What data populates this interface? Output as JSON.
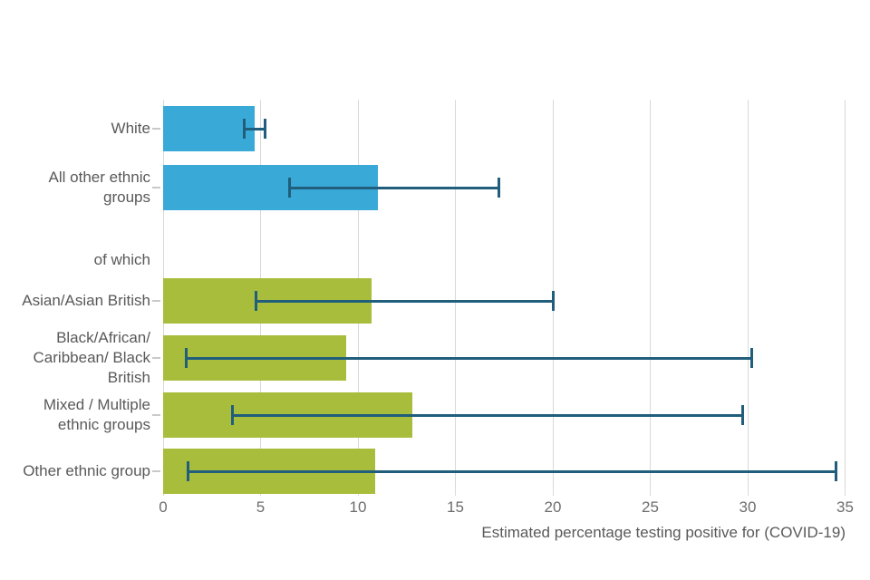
{
  "chart_data": {
    "type": "bar",
    "orientation": "horizontal",
    "title": "",
    "xlabel": "Estimated percentage testing positive for (COVID-19)",
    "ylabel": "",
    "xlim": [
      0,
      35
    ],
    "xticks": [
      0,
      5,
      10,
      15,
      20,
      25,
      30,
      35
    ],
    "grid": true,
    "legend": false,
    "error_bars": true,
    "bars": [
      {
        "label": "White",
        "label_lines": [
          "White"
        ],
        "value": 4.7,
        "ci_low": 4.1,
        "ci_high": 5.3,
        "color_key": "blue"
      },
      {
        "label": "All other ethnic groups",
        "label_lines": [
          "All other ethnic",
          "groups"
        ],
        "value": 11.0,
        "ci_low": 6.4,
        "ci_high": 17.3,
        "color_key": "blue"
      },
      {
        "label": "of which",
        "label_lines": [
          "of which"
        ],
        "value": null,
        "ci_low": null,
        "ci_high": null,
        "color_key": null
      },
      {
        "label": "Asian/Asian British",
        "label_lines": [
          "Asian/Asian British"
        ],
        "value": 10.7,
        "ci_low": 4.7,
        "ci_high": 20.1,
        "color_key": "green"
      },
      {
        "label": "Black/African/ Caribbean/ Black British",
        "label_lines": [
          "Black/African/",
          "Caribbean/ Black",
          "British"
        ],
        "value": 9.4,
        "ci_low": 1.1,
        "ci_high": 30.3,
        "color_key": "green"
      },
      {
        "label": "Mixed / Multiple ethnic groups",
        "label_lines": [
          "Mixed / Multiple",
          "ethnic groups"
        ],
        "value": 12.8,
        "ci_low": 3.5,
        "ci_high": 29.8,
        "color_key": "green"
      },
      {
        "label": "Other ethnic group",
        "label_lines": [
          "Other ethnic group"
        ],
        "value": 10.9,
        "ci_low": 1.2,
        "ci_high": 34.6,
        "color_key": "green"
      }
    ]
  },
  "colors": {
    "blue": "#39a9d7",
    "green": "#a8bd3b",
    "error_bar": "#205e7c",
    "gridline": "#d9d9d9",
    "category_tick": "#c9c9c9",
    "text": "#595959"
  }
}
